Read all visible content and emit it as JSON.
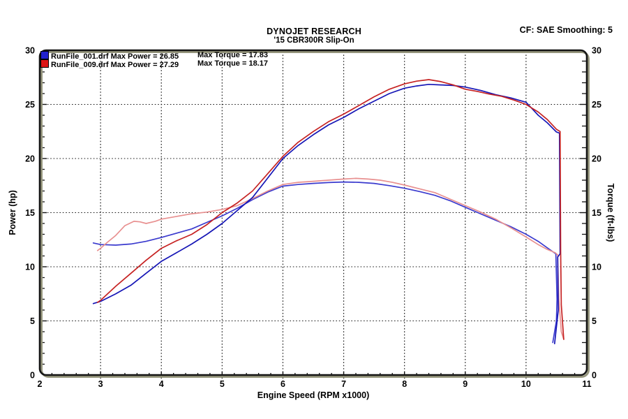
{
  "header": {
    "title": "DYNOJET RESEARCH",
    "subtitle": "'15 CBR300R Slip-On",
    "correction": "CF: SAE  Smoothing: 5"
  },
  "legend": [
    {
      "file": "RunFile_001.drf",
      "power": "Max Power = 26.85",
      "torque": "Max Torque = 17.83",
      "color": "#2222cc"
    },
    {
      "file": "RunFile_009.drf",
      "power": "Max Power = 27.29",
      "torque": "Max Torque = 18.17",
      "color": "#dd1515"
    }
  ],
  "chart_data": {
    "type": "line",
    "title": "DYNOJET RESEARCH",
    "subtitle": "'15 CBR300R Slip-On",
    "correction_factor": "SAE",
    "smoothing": 5,
    "xlabel": "Engine Speed (RPM x1000)",
    "ylabel_left": "Power (hp)",
    "ylabel_right": "Torque (ft-lbs)",
    "xlim": [
      2,
      11
    ],
    "ylim": [
      0,
      30
    ],
    "x_ticks": [
      2,
      3,
      4,
      5,
      6,
      7,
      8,
      9,
      10,
      11
    ],
    "y_ticks": [
      0,
      5,
      10,
      15,
      20,
      25,
      30
    ],
    "x_minor_step": 0.2,
    "y_minor_step": 1,
    "grid": "dashed black at integer x and multiples of 5 on y",
    "legend_position": "top-left inside plot",
    "series": [
      {
        "name": "RunFile_001.drf Torque (ft-lbs)",
        "color": "#3a3ace",
        "points": [
          [
            2.88,
            12.2
          ],
          [
            3.0,
            12.05
          ],
          [
            3.25,
            12.0
          ],
          [
            3.5,
            12.1
          ],
          [
            3.75,
            12.35
          ],
          [
            4.0,
            12.7
          ],
          [
            4.25,
            13.1
          ],
          [
            4.5,
            13.5
          ],
          [
            4.75,
            14.1
          ],
          [
            5.0,
            14.7
          ],
          [
            5.25,
            15.4
          ],
          [
            5.5,
            16.2
          ],
          [
            5.75,
            16.9
          ],
          [
            6.0,
            17.45
          ],
          [
            6.25,
            17.6
          ],
          [
            6.5,
            17.7
          ],
          [
            6.75,
            17.78
          ],
          [
            7.0,
            17.83
          ],
          [
            7.25,
            17.8
          ],
          [
            7.5,
            17.7
          ],
          [
            7.75,
            17.5
          ],
          [
            8.0,
            17.25
          ],
          [
            8.25,
            16.95
          ],
          [
            8.5,
            16.6
          ],
          [
            8.75,
            16.1
          ],
          [
            9.0,
            15.5
          ],
          [
            9.25,
            14.9
          ],
          [
            9.5,
            14.3
          ],
          [
            9.75,
            13.7
          ],
          [
            10.0,
            13.0
          ],
          [
            10.2,
            12.35
          ],
          [
            10.35,
            11.75
          ],
          [
            10.45,
            11.35
          ],
          [
            10.49,
            11.2
          ],
          [
            10.51,
            7.0
          ],
          [
            10.5,
            5.0
          ],
          [
            10.44,
            3.0
          ]
        ]
      },
      {
        "name": "RunFile_009.drf Torque (ft-lbs)",
        "color": "#e89090",
        "points": [
          [
            2.95,
            11.5
          ],
          [
            3.0,
            11.7
          ],
          [
            3.1,
            12.2
          ],
          [
            3.25,
            12.9
          ],
          [
            3.4,
            13.8
          ],
          [
            3.55,
            14.2
          ],
          [
            3.65,
            14.15
          ],
          [
            3.75,
            14.0
          ],
          [
            3.9,
            14.2
          ],
          [
            4.0,
            14.4
          ],
          [
            4.25,
            14.65
          ],
          [
            4.5,
            14.9
          ],
          [
            4.75,
            15.05
          ],
          [
            5.0,
            15.3
          ],
          [
            5.25,
            15.65
          ],
          [
            5.5,
            16.3
          ],
          [
            5.75,
            17.0
          ],
          [
            6.0,
            17.6
          ],
          [
            6.25,
            17.8
          ],
          [
            6.5,
            17.9
          ],
          [
            6.75,
            18.0
          ],
          [
            7.0,
            18.1
          ],
          [
            7.2,
            18.17
          ],
          [
            7.4,
            18.1
          ],
          [
            7.6,
            18.0
          ],
          [
            7.8,
            17.8
          ],
          [
            8.0,
            17.55
          ],
          [
            8.25,
            17.2
          ],
          [
            8.5,
            16.85
          ],
          [
            8.75,
            16.25
          ],
          [
            9.0,
            15.65
          ],
          [
            9.25,
            15.05
          ],
          [
            9.5,
            14.4
          ],
          [
            9.75,
            13.6
          ],
          [
            10.0,
            12.75
          ],
          [
            10.2,
            12.05
          ],
          [
            10.35,
            11.6
          ],
          [
            10.48,
            11.3
          ],
          [
            10.52,
            11.1
          ],
          [
            10.54,
            7.0
          ],
          [
            10.58,
            4.0
          ],
          [
            10.62,
            3.3
          ]
        ]
      },
      {
        "name": "RunFile_001.drf Power (hp)",
        "color": "#1616b6",
        "points": [
          [
            2.88,
            6.6
          ],
          [
            3.0,
            6.8
          ],
          [
            3.25,
            7.5
          ],
          [
            3.5,
            8.3
          ],
          [
            3.75,
            9.4
          ],
          [
            4.0,
            10.5
          ],
          [
            4.25,
            11.3
          ],
          [
            4.5,
            12.1
          ],
          [
            4.75,
            13.0
          ],
          [
            5.0,
            14.0
          ],
          [
            5.25,
            15.2
          ],
          [
            5.5,
            16.4
          ],
          [
            5.75,
            18.2
          ],
          [
            6.0,
            20.0
          ],
          [
            6.25,
            21.2
          ],
          [
            6.5,
            22.2
          ],
          [
            6.75,
            23.1
          ],
          [
            7.0,
            23.8
          ],
          [
            7.25,
            24.6
          ],
          [
            7.5,
            25.3
          ],
          [
            7.75,
            26.0
          ],
          [
            8.0,
            26.5
          ],
          [
            8.2,
            26.7
          ],
          [
            8.4,
            26.85
          ],
          [
            8.6,
            26.8
          ],
          [
            8.8,
            26.75
          ],
          [
            9.0,
            26.6
          ],
          [
            9.25,
            26.3
          ],
          [
            9.5,
            25.9
          ],
          [
            9.75,
            25.6
          ],
          [
            10.0,
            25.2
          ],
          [
            10.2,
            24.0
          ],
          [
            10.35,
            23.3
          ],
          [
            10.5,
            22.45
          ],
          [
            10.55,
            22.35
          ],
          [
            10.56,
            11.2
          ],
          [
            10.52,
            10.9
          ],
          [
            10.53,
            6.0
          ],
          [
            10.47,
            2.9
          ]
        ]
      },
      {
        "name": "RunFile_009.drf Power (hp)",
        "color": "#c62222",
        "points": [
          [
            2.95,
            6.7
          ],
          [
            3.0,
            6.9
          ],
          [
            3.25,
            8.2
          ],
          [
            3.5,
            9.4
          ],
          [
            3.75,
            10.6
          ],
          [
            4.0,
            11.7
          ],
          [
            4.25,
            12.4
          ],
          [
            4.5,
            13.0
          ],
          [
            4.75,
            13.9
          ],
          [
            5.0,
            15.0
          ],
          [
            5.25,
            15.9
          ],
          [
            5.5,
            17.0
          ],
          [
            5.75,
            18.6
          ],
          [
            6.0,
            20.2
          ],
          [
            6.25,
            21.5
          ],
          [
            6.5,
            22.5
          ],
          [
            6.75,
            23.4
          ],
          [
            7.0,
            24.1
          ],
          [
            7.25,
            24.9
          ],
          [
            7.5,
            25.7
          ],
          [
            7.75,
            26.4
          ],
          [
            8.0,
            26.9
          ],
          [
            8.2,
            27.15
          ],
          [
            8.4,
            27.29
          ],
          [
            8.6,
            27.1
          ],
          [
            8.8,
            26.8
          ],
          [
            9.0,
            26.4
          ],
          [
            9.2,
            26.2
          ],
          [
            9.4,
            25.95
          ],
          [
            9.6,
            25.75
          ],
          [
            9.8,
            25.4
          ],
          [
            10.0,
            25.0
          ],
          [
            10.2,
            24.3
          ],
          [
            10.35,
            23.6
          ],
          [
            10.5,
            22.7
          ],
          [
            10.56,
            22.5
          ],
          [
            10.57,
            11.4
          ],
          [
            10.58,
            6.5
          ],
          [
            10.62,
            3.3
          ]
        ]
      }
    ]
  }
}
